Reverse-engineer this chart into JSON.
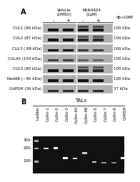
{
  "title_A": "A",
  "title_B": "B",
  "panel_A": {
    "header_vehicle": "Vehicle\n(DMSO)",
    "header_mln": "MLN4924\n(1μM)",
    "db_cgmp": "db-cGMP",
    "minus_plus": [
      "-",
      "+",
      "-",
      "+"
    ],
    "row_labels": [
      "CUL1 (90 kDa)",
      "CUL2 (87 kDa)",
      "CUL3 ( 89 kDa)",
      "CUL4A (104 kDa)",
      "CUL5 (90 kDa)",
      "Nedd8 (~90 kDa)",
      "GAPDH (36 kDa)"
    ],
    "right_labels": [
      "100 kDa",
      "100 kDa",
      "100 kDa",
      "100 kDa",
      "100 kDa",
      "100 kDa",
      "37 kDa"
    ]
  },
  "panel_B": {
    "title": "TALs",
    "lane_labels": [
      "Ladder",
      "Cullin-1",
      "Cullin-2",
      "Cullin-3",
      "Cullin-4A",
      "Cullin-4B",
      "Cullin-5",
      "Cullin-7",
      "Cullin-9",
      "GAPDH"
    ],
    "y_ticks": [
      "300-",
      "200-",
      "100-"
    ]
  },
  "figure_bg": "#ffffff",
  "font_size_small": 5,
  "font_size_tiny": 4
}
